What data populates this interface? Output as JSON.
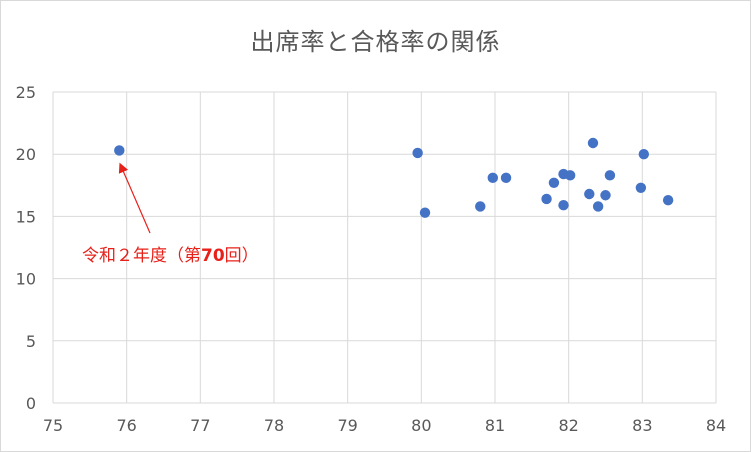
{
  "chart_data": {
    "type": "scatter",
    "title": "出席率と合格率の関係",
    "xlabel": "",
    "ylabel": "",
    "xlim": [
      75,
      84
    ],
    "ylim": [
      0,
      25
    ],
    "x_ticks": [
      75,
      76,
      77,
      78,
      79,
      80,
      81,
      82,
      83,
      84
    ],
    "y_ticks": [
      0,
      5,
      10,
      15,
      20,
      25
    ],
    "grid": true,
    "legend": "none",
    "marker_color": "#4472c4",
    "series": [
      {
        "points": [
          {
            "x": 75.9,
            "y": 20.3
          },
          {
            "x": 79.95,
            "y": 20.1
          },
          {
            "x": 80.05,
            "y": 15.3
          },
          {
            "x": 80.8,
            "y": 15.8
          },
          {
            "x": 80.97,
            "y": 18.1
          },
          {
            "x": 81.15,
            "y": 18.1
          },
          {
            "x": 81.7,
            "y": 16.4
          },
          {
            "x": 81.8,
            "y": 17.7
          },
          {
            "x": 81.93,
            "y": 15.9
          },
          {
            "x": 81.93,
            "y": 18.4
          },
          {
            "x": 82.02,
            "y": 18.3
          },
          {
            "x": 82.28,
            "y": 16.8
          },
          {
            "x": 82.33,
            "y": 20.9
          },
          {
            "x": 82.4,
            "y": 15.8
          },
          {
            "x": 82.5,
            "y": 16.7
          },
          {
            "x": 82.56,
            "y": 18.3
          },
          {
            "x": 82.98,
            "y": 17.3
          },
          {
            "x": 83.02,
            "y": 20.0
          },
          {
            "x": 83.35,
            "y": 16.3
          }
        ]
      }
    ],
    "annotations": [
      {
        "text_main": "令和２年度（第",
        "text_bold": "70",
        "text_end": "回）",
        "color": "#e8201a",
        "arrow_to": {
          "x": 75.9,
          "y": 20.3
        }
      }
    ]
  }
}
